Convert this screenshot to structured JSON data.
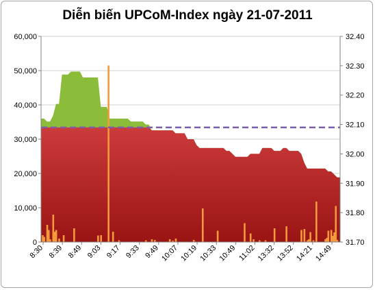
{
  "chart_data": {
    "type": "area",
    "title": "Diễn biến UPCoM-Index ngày 21-07-2011",
    "x_ticks": [
      "8:30",
      "8:39",
      "8:49",
      "9:03",
      "9:17",
      "9:33",
      "9:49",
      "10:07",
      "10:19",
      "10:33",
      "10:49",
      "11:02",
      "13:32",
      "13:52",
      "14:21",
      "14:49"
    ],
    "y_left": {
      "ticks": [
        "0",
        "10,000",
        "20,000",
        "30,000",
        "40,000",
        "50,000",
        "60,000"
      ],
      "min": 0,
      "max": 60000
    },
    "y_right": {
      "ticks": [
        "31.70",
        "31.80",
        "31.90",
        "32.00",
        "32.10",
        "32.20",
        "32.30",
        "32.40"
      ],
      "min": 31.7,
      "max": 32.4
    },
    "reference_line": {
      "value": 32.09,
      "axis": "right",
      "style": "dashed"
    },
    "series": [
      {
        "kind": "area",
        "axis": "right",
        "role": "above-reference",
        "x": [
          0,
          1,
          2,
          3,
          4,
          5,
          6,
          7,
          8,
          9,
          10,
          11,
          12,
          13,
          14,
          15,
          16,
          17,
          18,
          19,
          20,
          20.5,
          21,
          22,
          23,
          24,
          25,
          26,
          27,
          28,
          29,
          30,
          31,
          32,
          33,
          34,
          35,
          36,
          37,
          38,
          39,
          40,
          41,
          42,
          43,
          44,
          45,
          46,
          47,
          48,
          49,
          50,
          51,
          52,
          53,
          54,
          55,
          56,
          57,
          58,
          59,
          60,
          61,
          62,
          63,
          64,
          65,
          66,
          67,
          68,
          69,
          70,
          71,
          72,
          73,
          74,
          75,
          76,
          77,
          78,
          79,
          80,
          81,
          82,
          83,
          84,
          85,
          86,
          87,
          88,
          89,
          90,
          91,
          92,
          93,
          94,
          95,
          96,
          97,
          98,
          99,
          100
        ],
        "values": [
          32.12,
          32.12,
          32.11,
          32.11,
          32.13,
          32.17,
          32.17,
          32.27,
          32.27,
          32.27,
          32.28,
          32.28,
          32.28,
          32.28,
          32.26,
          32.26,
          32.26,
          32.26,
          32.26,
          32.26,
          32.16,
          32.16,
          32.16,
          32.16,
          32.12,
          32.12,
          32.12,
          32.12,
          32.12,
          32.12,
          32.12,
          32.11,
          32.11,
          32.11,
          32.11,
          32.11,
          32.1,
          32.1,
          32.08,
          32.08,
          32.08,
          32.08,
          32.08,
          32.08,
          32.08,
          32.08,
          32.07,
          32.07,
          32.07,
          32.07,
          32.05,
          32.05,
          32.05,
          32.03,
          32.02,
          32.02,
          32.02,
          32.02,
          32.02,
          32.02,
          32.02,
          32.02,
          32.02,
          32.01,
          32.01,
          32.0,
          31.99,
          31.99,
          31.99,
          31.99,
          31.99,
          32.0,
          32.0,
          32.0,
          32.0,
          32.02,
          32.02,
          32.02,
          32.02,
          32.01,
          32.01,
          32.01,
          32.02,
          32.02,
          32.01,
          32.01,
          32.01,
          32.01,
          32.0,
          31.97,
          31.95,
          31.95,
          31.95,
          31.95,
          31.95,
          31.95,
          31.95,
          31.94,
          31.94,
          31.93,
          31.92,
          31.92
        ],
        "color": "#8cbd3a"
      },
      {
        "kind": "bar",
        "axis": "left",
        "role": "volume",
        "x": [
          0.5,
          1,
          2,
          2.5,
          3,
          4,
          4.5,
          5,
          6,
          7.5,
          11,
          19,
          20,
          22.5,
          24,
          26,
          35,
          37,
          38,
          43,
          44,
          45,
          51,
          54,
          59,
          68,
          70,
          71,
          73,
          75,
          78,
          82,
          87,
          88,
          89,
          89.5,
          90,
          91,
          92,
          95,
          95.5,
          96,
          97,
          97.5,
          98,
          98.5,
          99
        ],
        "values": [
          2000,
          1500,
          5000,
          3500,
          800,
          8000,
          3000,
          3500,
          1000,
          2000,
          4000,
          1900,
          2000,
          51500,
          3000,
          500,
          500,
          800,
          600,
          800,
          400,
          1000,
          600,
          9800,
          3300,
          5500,
          2500,
          800,
          500,
          500,
          4000,
          4600,
          3500,
          3800,
          500,
          800,
          2900,
          500,
          11800,
          800,
          1200,
          3300,
          3500,
          1800,
          2800,
          10500,
          600
        ],
        "color": "#f39a3c"
      }
    ]
  }
}
